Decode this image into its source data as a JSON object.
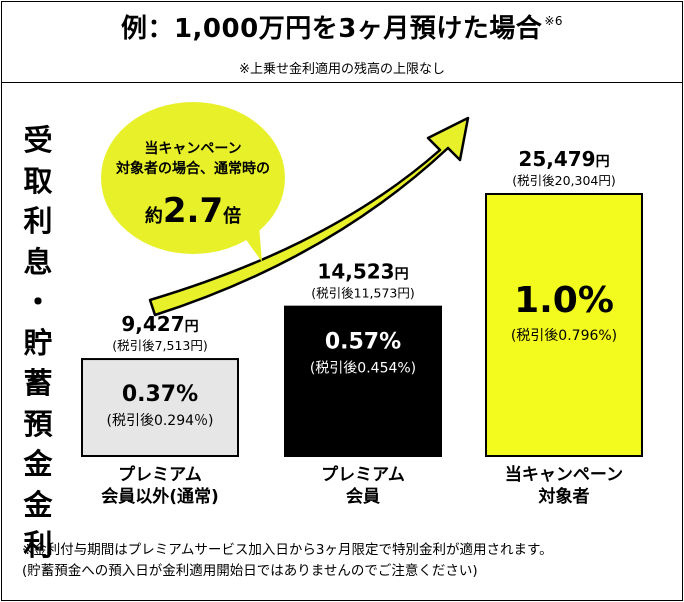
{
  "title": {
    "text": "例：1,000万円を3ヶ月預けた場合",
    "note_ref": "※6"
  },
  "subtitle": "※上乗せ金利適用の残高の上限なし",
  "y_axis_label": [
    "受",
    "取",
    "利",
    "息",
    "・",
    "貯",
    "蓄",
    "預",
    "金",
    "金",
    "利"
  ],
  "callout": {
    "line1": "当キャンペーン",
    "line2": "対象者の場合、通常時の",
    "prefix": "約",
    "multiplier": "2.7",
    "suffix": "倍"
  },
  "footnote": {
    "line1": "※金利付与期間はプレミアムサービス加入日から3ヶ月限定で特別金利が適用されます。",
    "line2": "(貯蓄預金への預入日が金利適用開始日ではありませんのでご注意ください)"
  },
  "chart_data": {
    "type": "bar",
    "categories": [
      "プレミアム\n会員以外(通常)",
      "プレミアム\n会員",
      "当キャンペーン\n対象者"
    ],
    "values": [
      9427,
      14523,
      25479
    ],
    "value_labels": [
      "9,427",
      "14,523",
      "25,479"
    ],
    "value_unit": "円",
    "after_tax_labels": [
      "(税引後7,513円)",
      "(税引後11,573円)",
      "(税引後20,304円)"
    ],
    "rates": [
      "0.37%",
      "0.57%",
      "1.0%"
    ],
    "rate_after_tax": [
      "(税引後0.294％)",
      "(税引後0.454%)",
      "(税引後0.796%)"
    ],
    "ylabel": "受取利息・貯蓄預金金利",
    "colors": {
      "bar1": "#e6e6e6",
      "bar2": "#000000",
      "bar3": "#f3fa1e",
      "arrow": "#e8f02a"
    }
  }
}
